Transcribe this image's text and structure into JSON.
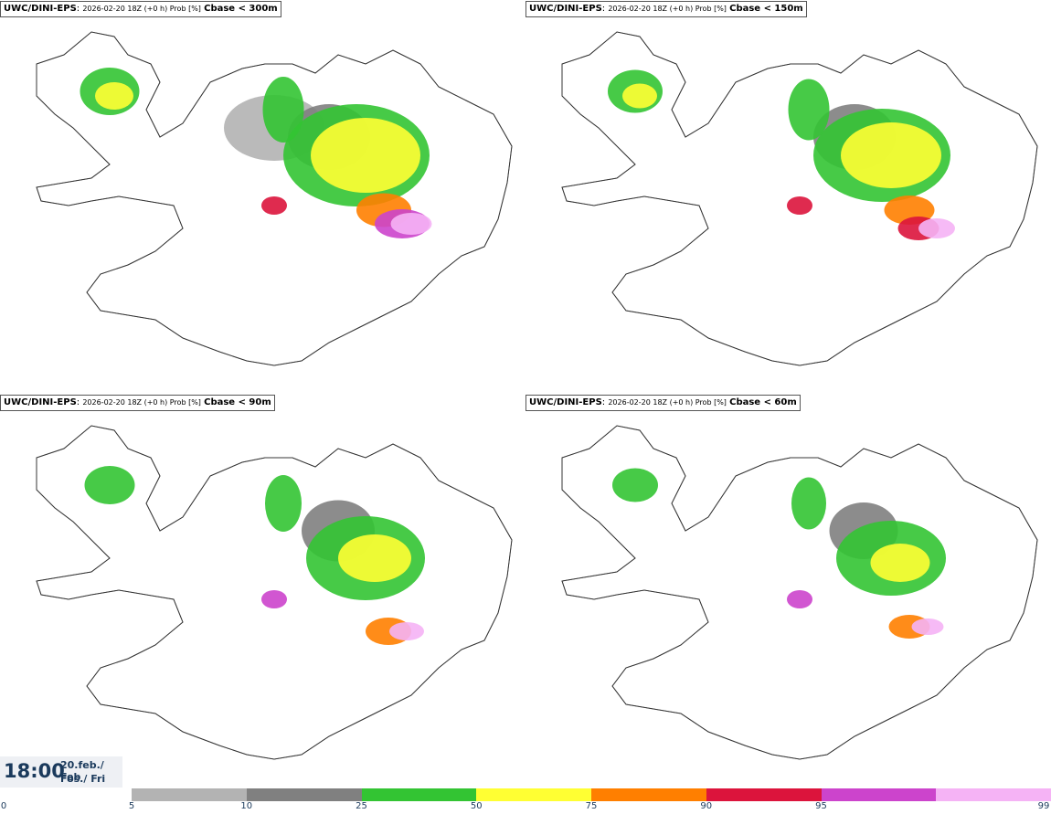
{
  "panels": [
    {
      "model": "UWC/DINI-EPS",
      "meta": "2026-02-20 18Z (+0 h) Prob [%]",
      "variable": "Cbase < 300m"
    },
    {
      "model": "UWC/DINI-EPS",
      "meta": "2026-02-20 18Z (+0 h) Prob [%]",
      "variable": "Cbase < 150m"
    },
    {
      "model": "UWC/DINI-EPS",
      "meta": "2026-02-20 18Z (+0 h) Prob [%]",
      "variable": "Cbase < 90m"
    },
    {
      "model": "UWC/DINI-EPS",
      "meta": "2026-02-20 18Z (+0 h) Prob [%]",
      "variable": "Cbase < 60m"
    }
  ],
  "time": {
    "clock": "18:00",
    "date": "20.feb./ Feb",
    "weekday": "Fös./ Fri"
  },
  "legend": {
    "ticks": [
      "0",
      "5",
      "10",
      "25",
      "50",
      "75",
      "90",
      "95",
      "99"
    ],
    "colors": [
      "#b3b3b3",
      "#808080",
      "#33c433",
      "#ffff33",
      "#ff7f00",
      "#dc143c",
      "#cc44cc",
      "#f5b3f5"
    ]
  }
}
